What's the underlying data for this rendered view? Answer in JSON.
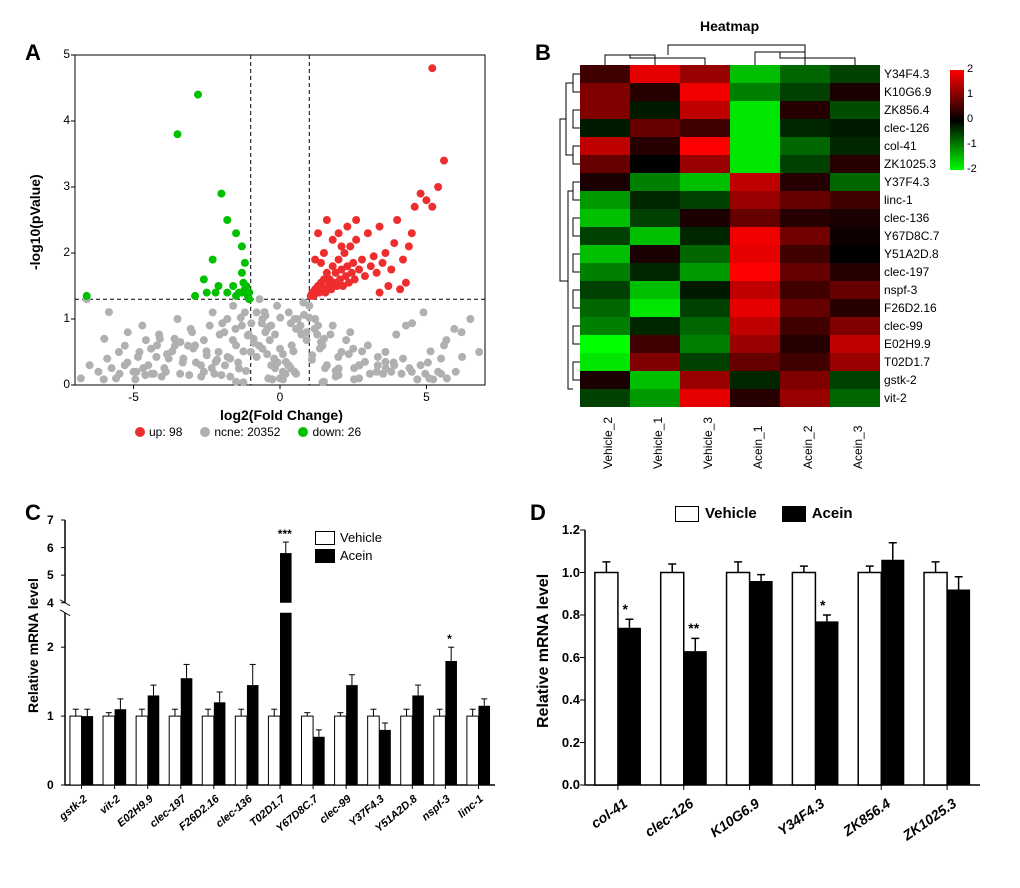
{
  "panel_labels": {
    "A": "A",
    "B": "B",
    "C": "C",
    "D": "D"
  },
  "volcano": {
    "xlabel": "log2(Fold Change)",
    "ylabel": "-log10(pValue)",
    "xlim": [
      -7,
      7
    ],
    "ylim": [
      0,
      5
    ],
    "xticks": [
      -5,
      0,
      5
    ],
    "yticks": [
      0,
      1,
      2,
      3,
      4,
      5
    ],
    "pthreshold": 1.3,
    "fcthresholds": [
      -1,
      1
    ],
    "legend": [
      {
        "color": "#ee2e2e",
        "label": "up: 98"
      },
      {
        "color": "#b0b0b0",
        "label": "ncne: 20352"
      },
      {
        "color": "#00c000",
        "label": "down: 26"
      }
    ],
    "colors": {
      "up": "#ee2e2e",
      "ncne": "#b0b0b0",
      "down": "#00c000"
    },
    "point_size": 4,
    "gray_points": [
      [
        -6.8,
        0.1
      ],
      [
        -6.5,
        0.3
      ],
      [
        -6.2,
        0.2
      ],
      [
        -5.9,
        0.4
      ],
      [
        -5.6,
        0.1
      ],
      [
        -5.3,
        0.3
      ],
      [
        -5.0,
        0.2
      ],
      [
        -4.8,
        0.5
      ],
      [
        -4.5,
        0.3
      ],
      [
        -4.2,
        0.6
      ],
      [
        -3.9,
        0.2
      ],
      [
        -3.6,
        0.7
      ],
      [
        -3.3,
        0.4
      ],
      [
        -3.0,
        0.8
      ],
      [
        -2.7,
        0.3
      ],
      [
        -2.4,
        0.9
      ],
      [
        -2.1,
        0.5
      ],
      [
        -1.8,
        1.0
      ],
      [
        -1.5,
        0.6
      ],
      [
        -1.2,
        1.1
      ],
      [
        -0.9,
        0.7
      ],
      [
        -0.6,
        1.0
      ],
      [
        -0.3,
        0.3
      ],
      [
        0.0,
        0.1
      ],
      [
        0.3,
        0.3
      ],
      [
        0.6,
        1.0
      ],
      [
        0.9,
        0.8
      ],
      [
        1.2,
        1.0
      ],
      [
        1.5,
        0.7
      ],
      [
        1.8,
        0.9
      ],
      [
        2.1,
        0.5
      ],
      [
        2.4,
        0.8
      ],
      [
        2.7,
        0.3
      ],
      [
        3.0,
        0.6
      ],
      [
        3.3,
        0.2
      ],
      [
        3.6,
        0.5
      ],
      [
        3.9,
        0.3
      ],
      [
        4.2,
        0.4
      ],
      [
        4.5,
        0.2
      ],
      [
        4.8,
        0.3
      ],
      [
        5.1,
        0.1
      ],
      [
        5.4,
        0.2
      ],
      [
        5.7,
        0.1
      ],
      [
        6.0,
        0.2
      ],
      [
        -5.2,
        0.8
      ],
      [
        -4.7,
        0.9
      ],
      [
        -4.1,
        0.7
      ],
      [
        -3.5,
        1.0
      ],
      [
        -2.9,
        0.6
      ],
      [
        -2.3,
        1.1
      ],
      [
        -1.9,
        0.8
      ],
      [
        -1.6,
        1.2
      ],
      [
        -1.3,
        0.9
      ],
      [
        -1.0,
        0.5
      ],
      [
        -0.8,
        1.1
      ],
      [
        -0.5,
        0.8
      ],
      [
        -0.2,
        0.4
      ],
      [
        0.1,
        0.2
      ],
      [
        0.4,
        0.6
      ],
      [
        0.7,
        0.9
      ],
      [
        1.0,
        1.2
      ],
      [
        1.3,
        0.9
      ],
      [
        -4.9,
        0.2
      ],
      [
        -3.8,
        0.4
      ],
      [
        -2.6,
        0.2
      ],
      [
        -1.7,
        0.4
      ],
      [
        -0.4,
        0.1
      ],
      [
        0.5,
        0.2
      ],
      [
        1.6,
        0.3
      ],
      [
        2.7,
        0.1
      ],
      [
        3.8,
        0.2
      ],
      [
        6.2,
        0.8
      ],
      [
        6.5,
        1.0
      ],
      [
        6.8,
        0.5
      ],
      [
        -6.0,
        0.7
      ],
      [
        5.6,
        0.6
      ],
      [
        -6.6,
        1.3
      ],
      [
        -0.7,
        1.3
      ],
      [
        0.8,
        1.25
      ],
      [
        -3.1,
        0.15
      ],
      [
        -2.2,
        0.35
      ],
      [
        -1.4,
        0.25
      ],
      [
        -0.6,
        0.55
      ],
      [
        0.2,
        0.35
      ],
      [
        1.1,
        0.45
      ],
      [
        2.0,
        0.25
      ],
      [
        2.9,
        0.35
      ],
      [
        -4.4,
        0.55
      ],
      [
        -3.4,
        0.65
      ],
      [
        -2.5,
        0.45
      ],
      [
        -1.1,
        0.75
      ],
      [
        0.0,
        0.55
      ],
      [
        1.4,
        0.65
      ],
      [
        2.5,
        0.55
      ],
      [
        3.6,
        0.35
      ],
      [
        -0.1,
        1.2
      ],
      [
        0.3,
        1.1
      ],
      [
        -0.3,
        0.9
      ],
      [
        0.5,
        1.0
      ],
      [
        -0.5,
        1.05
      ],
      [
        -2.0,
        0.15
      ],
      [
        2.0,
        0.15
      ],
      [
        -1.5,
        0.05
      ],
      [
        1.5,
        0.05
      ],
      [
        4.3,
        0.9
      ],
      [
        4.9,
        1.1
      ],
      [
        5.5,
        0.4
      ],
      [
        -5.5,
        0.5
      ],
      [
        -4.6,
        0.15
      ]
    ],
    "green_points": [
      [
        -6.6,
        1.35
      ],
      [
        -2.9,
        1.35
      ],
      [
        -2.5,
        1.4
      ],
      [
        -2.2,
        1.4
      ],
      [
        -1.8,
        1.4
      ],
      [
        -1.5,
        1.35
      ],
      [
        -1.3,
        1.4
      ],
      [
        -1.2,
        1.45
      ],
      [
        -1.15,
        1.5
      ],
      [
        -1.25,
        1.55
      ],
      [
        -1.3,
        1.7
      ],
      [
        -1.2,
        1.85
      ],
      [
        -1.3,
        2.1
      ],
      [
        -1.5,
        2.3
      ],
      [
        -1.8,
        2.5
      ],
      [
        -2.0,
        2.9
      ],
      [
        -2.8,
        4.4
      ],
      [
        -3.5,
        3.8
      ],
      [
        -2.3,
        1.9
      ],
      [
        -2.6,
        1.6
      ],
      [
        -2.1,
        1.5
      ],
      [
        -1.6,
        1.5
      ],
      [
        -1.4,
        1.4
      ],
      [
        -1.1,
        1.35
      ],
      [
        -1.05,
        1.3
      ],
      [
        -1.05,
        1.4
      ]
    ],
    "red_points": [
      [
        1.05,
        1.35
      ],
      [
        1.1,
        1.4
      ],
      [
        1.15,
        1.35
      ],
      [
        1.2,
        1.45
      ],
      [
        1.25,
        1.4
      ],
      [
        1.3,
        1.5
      ],
      [
        1.35,
        1.4
      ],
      [
        1.4,
        1.55
      ],
      [
        1.45,
        1.45
      ],
      [
        1.5,
        1.6
      ],
      [
        1.55,
        1.4
      ],
      [
        1.6,
        1.7
      ],
      [
        1.65,
        1.5
      ],
      [
        1.7,
        1.6
      ],
      [
        1.75,
        1.45
      ],
      [
        1.8,
        1.8
      ],
      [
        1.85,
        1.55
      ],
      [
        1.9,
        1.7
      ],
      [
        1.95,
        1.5
      ],
      [
        2.0,
        1.9
      ],
      [
        2.05,
        1.6
      ],
      [
        2.1,
        1.75
      ],
      [
        2.15,
        1.5
      ],
      [
        2.2,
        2.0
      ],
      [
        2.25,
        1.65
      ],
      [
        2.3,
        1.8
      ],
      [
        2.35,
        1.55
      ],
      [
        2.4,
        2.1
      ],
      [
        2.45,
        1.7
      ],
      [
        2.5,
        1.85
      ],
      [
        2.55,
        1.6
      ],
      [
        2.6,
        2.2
      ],
      [
        2.7,
        1.75
      ],
      [
        2.8,
        1.9
      ],
      [
        2.9,
        1.65
      ],
      [
        3.0,
        2.3
      ],
      [
        3.1,
        1.8
      ],
      [
        3.2,
        1.95
      ],
      [
        3.3,
        1.7
      ],
      [
        3.4,
        2.4
      ],
      [
        3.5,
        1.85
      ],
      [
        3.6,
        2.0
      ],
      [
        3.8,
        1.75
      ],
      [
        4.0,
        2.5
      ],
      [
        4.2,
        1.9
      ],
      [
        4.4,
        2.1
      ],
      [
        4.6,
        2.7
      ],
      [
        4.8,
        2.9
      ],
      [
        5.0,
        2.8
      ],
      [
        5.2,
        2.7
      ],
      [
        5.4,
        3.0
      ],
      [
        5.6,
        3.4
      ],
      [
        5.2,
        4.8
      ],
      [
        2.0,
        2.3
      ],
      [
        2.3,
        2.4
      ],
      [
        2.6,
        2.5
      ],
      [
        2.1,
        2.1
      ],
      [
        1.8,
        2.2
      ],
      [
        1.5,
        2.0
      ],
      [
        3.9,
        2.15
      ],
      [
        4.5,
        2.3
      ],
      [
        1.3,
        2.3
      ],
      [
        1.6,
        2.5
      ],
      [
        1.2,
        1.9
      ],
      [
        1.4,
        1.85
      ],
      [
        3.4,
        1.4
      ],
      [
        3.7,
        1.5
      ],
      [
        4.1,
        1.45
      ],
      [
        4.3,
        1.55
      ]
    ]
  },
  "heatmap": {
    "title": "Heatmap",
    "columns": [
      "Vehicle_2",
      "Vehicle_1",
      "Vehicle_3",
      "Acein_1",
      "Acein_2",
      "Acein_3"
    ],
    "rows": [
      {
        "name": "Y34F4.3",
        "vals": [
          0.5,
          1.8,
          1.2,
          -1.5,
          -0.8,
          -0.5
        ]
      },
      {
        "name": "K10G6.9",
        "vals": [
          1.0,
          0.3,
          1.9,
          -1.0,
          -0.5,
          0.2
        ]
      },
      {
        "name": "ZK856.4",
        "vals": [
          1.0,
          -0.2,
          1.5,
          -1.8,
          0.3,
          -0.6
        ]
      },
      {
        "name": "clec-126",
        "vals": [
          -0.2,
          0.8,
          0.5,
          -1.8,
          -0.3,
          -0.2
        ]
      },
      {
        "name": "col-41",
        "vals": [
          1.5,
          0.3,
          2.0,
          -1.8,
          -0.8,
          -0.3
        ]
      },
      {
        "name": "ZK1025.3",
        "vals": [
          0.8,
          0.0,
          1.2,
          -1.8,
          -0.5,
          0.3
        ]
      },
      {
        "name": "Y37F4.3",
        "vals": [
          0.2,
          -1.0,
          -1.5,
          1.5,
          0.3,
          -0.8
        ]
      },
      {
        "name": "linc-1",
        "vals": [
          -1.2,
          -0.3,
          -0.5,
          1.2,
          0.8,
          0.5
        ]
      },
      {
        "name": "clec-136",
        "vals": [
          -1.5,
          -0.5,
          0.2,
          0.8,
          0.3,
          0.2
        ]
      },
      {
        "name": "Y67D8C.7",
        "vals": [
          -0.5,
          -1.5,
          -0.3,
          1.9,
          0.9,
          0.1
        ]
      },
      {
        "name": "Y51A2D.8",
        "vals": [
          -1.5,
          0.2,
          -0.8,
          1.8,
          0.5,
          0.0
        ]
      },
      {
        "name": "clec-197",
        "vals": [
          -1.0,
          -0.3,
          -1.2,
          2.0,
          0.8,
          0.3
        ]
      },
      {
        "name": "nspf-3",
        "vals": [
          -0.5,
          -1.5,
          -0.2,
          1.5,
          0.5,
          0.8
        ]
      },
      {
        "name": "F26D2.16",
        "vals": [
          -0.8,
          -1.8,
          -0.5,
          1.8,
          0.8,
          0.3
        ]
      },
      {
        "name": "clec-99",
        "vals": [
          -1.0,
          -0.3,
          -0.8,
          1.5,
          0.5,
          1.0
        ]
      },
      {
        "name": "E02H9.9",
        "vals": [
          -2.0,
          0.5,
          -1.0,
          1.2,
          0.3,
          1.5
        ]
      },
      {
        "name": "T02D1.7",
        "vals": [
          -1.8,
          1.0,
          -0.5,
          0.8,
          0.5,
          1.2
        ]
      },
      {
        "name": "gstk-2",
        "vals": [
          0.2,
          -1.5,
          1.2,
          -0.3,
          1.0,
          -0.5
        ]
      },
      {
        "name": "vit-2",
        "vals": [
          -0.5,
          -1.2,
          1.8,
          0.3,
          1.2,
          -0.8
        ]
      }
    ],
    "colorbar": {
      "min": -2,
      "max": 2,
      "ticks": [
        -2,
        -1,
        0,
        1,
        2
      ]
    },
    "colors": {
      "low": "#00ff00",
      "mid": "#000000",
      "high": "#ff0000"
    }
  },
  "panelC": {
    "ylabel": "Relative mRNA level",
    "ylim_lower": [
      0,
      2.5
    ],
    "ylim_upper": [
      4,
      7
    ],
    "ytick_step_lower": 1,
    "ytick_step_upper": 1,
    "legend": [
      {
        "label": "Vehicle",
        "fill": "#ffffff"
      },
      {
        "label": "Acein",
        "fill": "#000000"
      }
    ],
    "genes": [
      {
        "name": "gstk-2",
        "veh": 1.0,
        "veh_err": 0.1,
        "ace": 1.0,
        "ace_err": 0.1,
        "sig": ""
      },
      {
        "name": "vit-2",
        "veh": 1.0,
        "veh_err": 0.05,
        "ace": 1.1,
        "ace_err": 0.15,
        "sig": ""
      },
      {
        "name": "E02H9.9",
        "veh": 1.0,
        "veh_err": 0.1,
        "ace": 1.3,
        "ace_err": 0.15,
        "sig": ""
      },
      {
        "name": "clec-197",
        "veh": 1.0,
        "veh_err": 0.1,
        "ace": 1.55,
        "ace_err": 0.2,
        "sig": ""
      },
      {
        "name": "F26D2.16",
        "veh": 1.0,
        "veh_err": 0.1,
        "ace": 1.2,
        "ace_err": 0.15,
        "sig": ""
      },
      {
        "name": "clec-136",
        "veh": 1.0,
        "veh_err": 0.1,
        "ace": 1.45,
        "ace_err": 0.3,
        "sig": ""
      },
      {
        "name": "T02D1.7",
        "veh": 1.0,
        "veh_err": 0.1,
        "ace": 5.8,
        "ace_err": 0.4,
        "sig": "***"
      },
      {
        "name": "Y67D8C.7",
        "veh": 1.0,
        "veh_err": 0.05,
        "ace": 0.7,
        "ace_err": 0.1,
        "sig": ""
      },
      {
        "name": "clec-99",
        "veh": 1.0,
        "veh_err": 0.05,
        "ace": 1.45,
        "ace_err": 0.15,
        "sig": ""
      },
      {
        "name": "Y37F4.3",
        "veh": 1.0,
        "veh_err": 0.1,
        "ace": 0.8,
        "ace_err": 0.1,
        "sig": ""
      },
      {
        "name": "Y51A2D.8",
        "veh": 1.0,
        "veh_err": 0.1,
        "ace": 1.3,
        "ace_err": 0.15,
        "sig": ""
      },
      {
        "name": "nspf-3",
        "veh": 1.0,
        "veh_err": 0.1,
        "ace": 1.8,
        "ace_err": 0.2,
        "sig": "*"
      },
      {
        "name": "linc-1",
        "veh": 1.0,
        "veh_err": 0.1,
        "ace": 1.15,
        "ace_err": 0.1,
        "sig": ""
      }
    ]
  },
  "panelD": {
    "ylabel": "Relative mRNA level",
    "ylim": [
      0,
      1.2
    ],
    "ytick_step": 0.2,
    "legend": [
      {
        "label": "Vehicle",
        "fill": "#ffffff"
      },
      {
        "label": "Acein",
        "fill": "#000000"
      }
    ],
    "genes": [
      {
        "name": "col-41",
        "veh": 1.0,
        "veh_err": 0.05,
        "ace": 0.74,
        "ace_err": 0.04,
        "sig": "*"
      },
      {
        "name": "clec-126",
        "veh": 1.0,
        "veh_err": 0.04,
        "ace": 0.63,
        "ace_err": 0.06,
        "sig": "**"
      },
      {
        "name": "K10G6.9",
        "veh": 1.0,
        "veh_err": 0.05,
        "ace": 0.96,
        "ace_err": 0.03,
        "sig": ""
      },
      {
        "name": "Y34F4.3",
        "veh": 1.0,
        "veh_err": 0.03,
        "ace": 0.77,
        "ace_err": 0.03,
        "sig": "*"
      },
      {
        "name": "ZK856.4",
        "veh": 1.0,
        "veh_err": 0.03,
        "ace": 1.06,
        "ace_err": 0.08,
        "sig": ""
      },
      {
        "name": "ZK1025.3",
        "veh": 1.0,
        "veh_err": 0.05,
        "ace": 0.92,
        "ace_err": 0.06,
        "sig": ""
      }
    ]
  }
}
